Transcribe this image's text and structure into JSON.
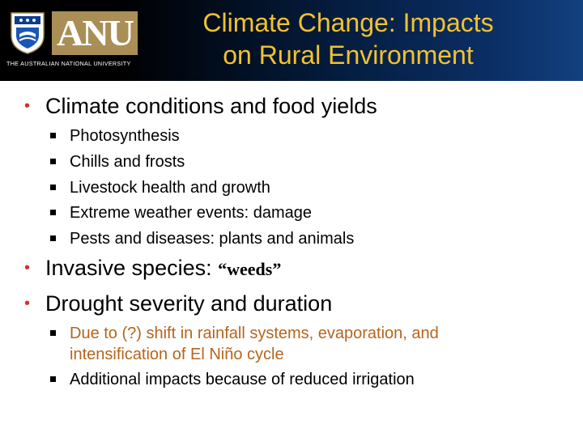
{
  "header": {
    "logo_text": "ANU",
    "university_name": "THE AUSTRALIAN NATIONAL UNIVERSITY",
    "title_line1": "Climate Change: Impacts",
    "title_line2": "on Rural Environment"
  },
  "bullets": {
    "item1": {
      "text": "Climate conditions and food yields",
      "subitems": [
        "Photosynthesis",
        "Chills and frosts",
        "Livestock health and growth",
        "Extreme weather events: damage",
        "Pests and diseases: plants and animals"
      ]
    },
    "item2": {
      "text": "Invasive species: ",
      "emphasis": "“weeds”"
    },
    "item3": {
      "text": "Drought severity and duration",
      "subitems": [
        {
          "line1": "Due to (?) shift in rainfall systems, evaporation, and",
          "line2": "intensification of El Niño cycle"
        },
        {
          "line1": "Additional impacts because of reduced irrigation"
        }
      ]
    }
  },
  "colors": {
    "title": "#f2c22e",
    "bullet": "#cc3333",
    "highlight": "#b5651d",
    "logo_bg": "#a98f56"
  }
}
